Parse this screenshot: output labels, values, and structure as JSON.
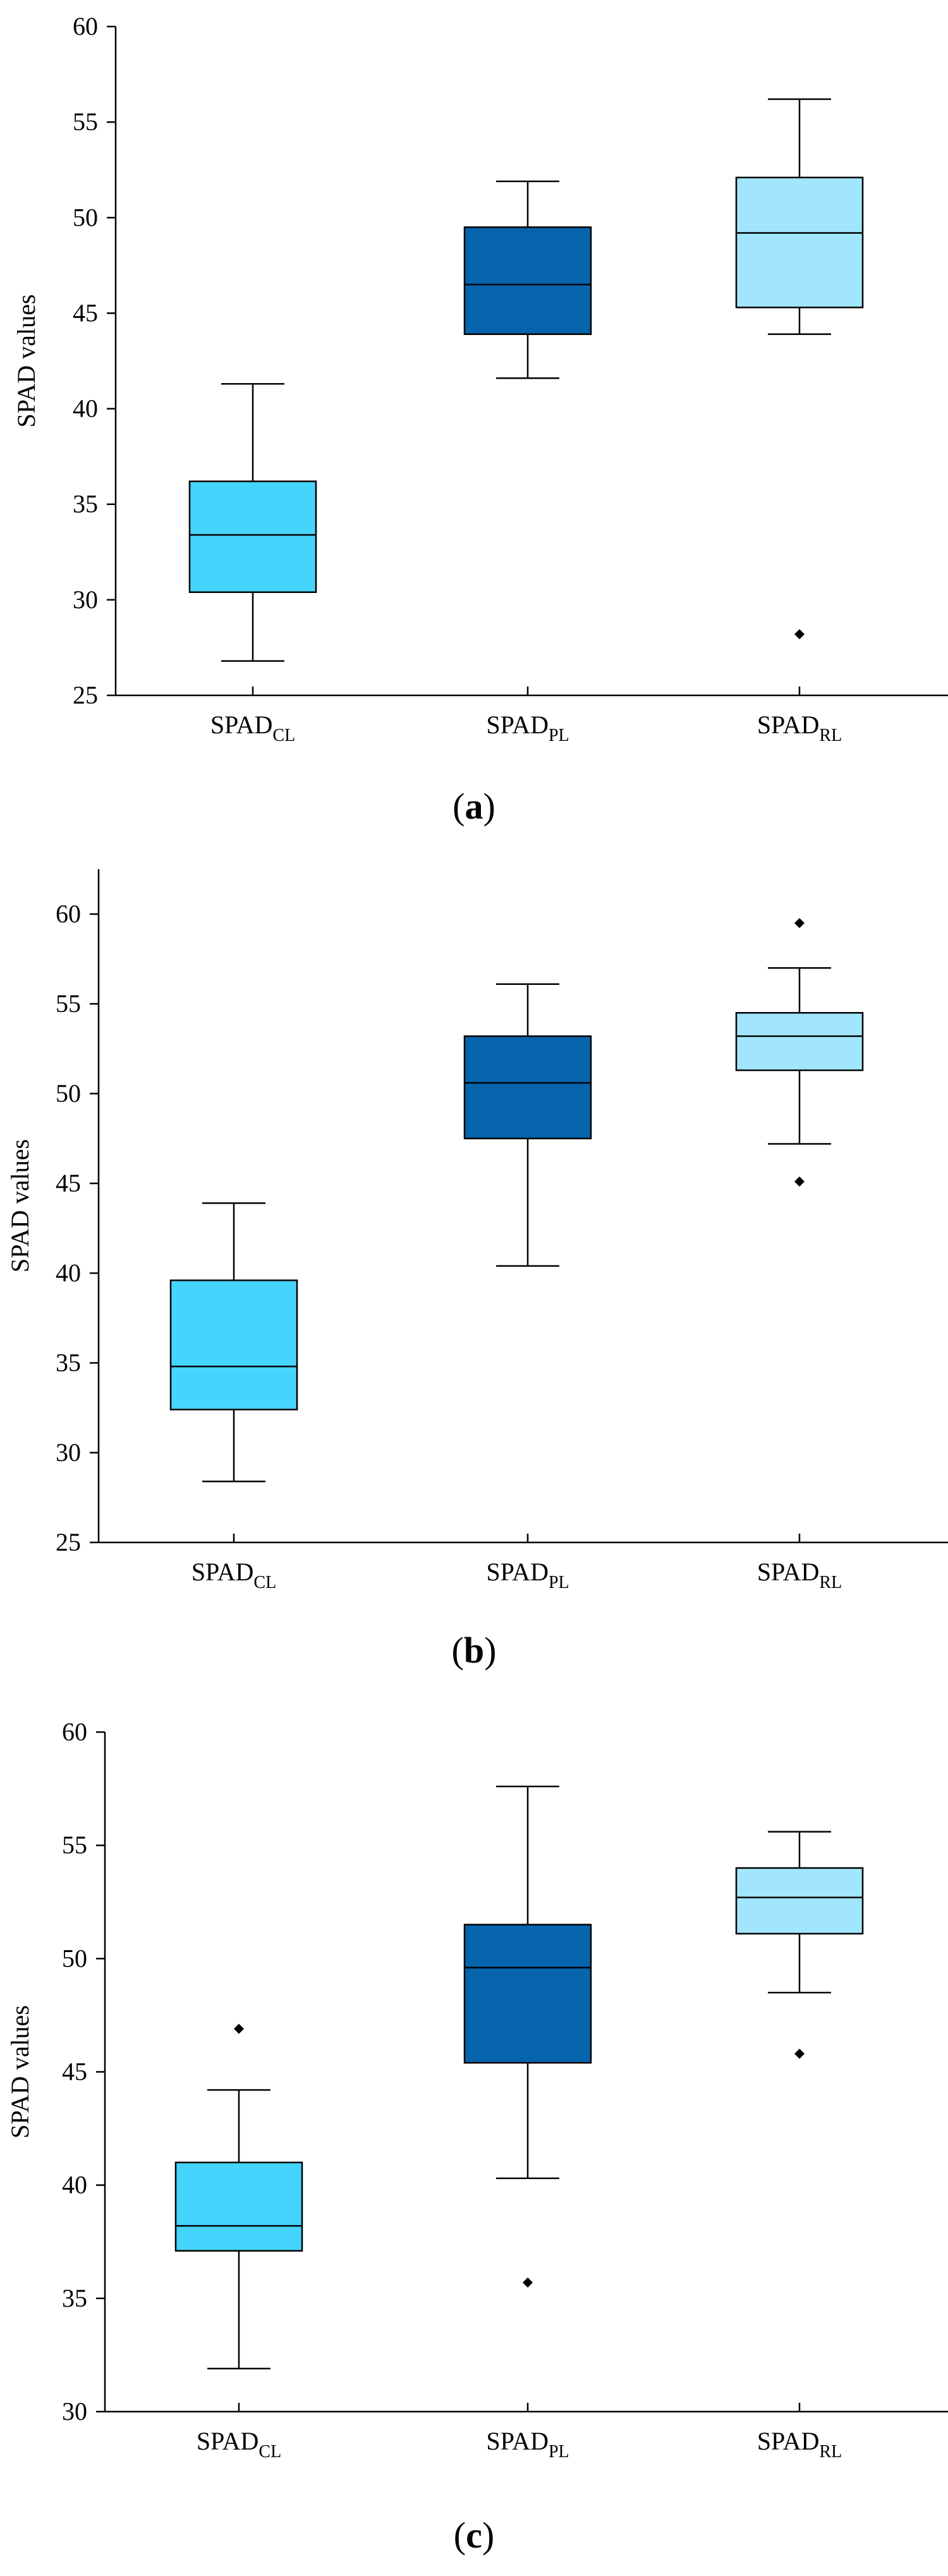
{
  "chart_data": [
    {
      "type": "boxplot",
      "panel": "a",
      "caption": "(a)",
      "ylabel": "SPAD values",
      "ylim": [
        25,
        60
      ],
      "yticks": [
        25,
        30,
        35,
        40,
        45,
        50,
        55,
        60
      ],
      "categories": [
        {
          "base": "SPAD",
          "sub": "CL",
          "color": "#45d4fc",
          "stats": {
            "min": 26.8,
            "q1": 30.4,
            "median": 33.4,
            "q3": 36.2,
            "max": 41.3
          },
          "outliers": []
        },
        {
          "base": "SPAD",
          "sub": "PL",
          "color": "#0664ad",
          "stats": {
            "min": 41.6,
            "q1": 43.9,
            "median": 46.5,
            "q3": 49.5,
            "max": 51.9
          },
          "outliers": []
        },
        {
          "base": "SPAD",
          "sub": "RL",
          "color": "#a1e6fc",
          "stats": {
            "min": 43.9,
            "q1": 45.3,
            "median": 49.2,
            "q3": 52.1,
            "max": 56.2
          },
          "outliers": [
            28.2
          ]
        }
      ]
    },
    {
      "type": "boxplot",
      "panel": "b",
      "caption": "(b)",
      "ylabel": "SPAD values",
      "ylim": [
        25,
        62.5
      ],
      "yticks": [
        25,
        30,
        35,
        40,
        45,
        50,
        55,
        60
      ],
      "categories": [
        {
          "base": "SPAD",
          "sub": "CL",
          "color": "#45d4fc",
          "stats": {
            "min": 28.4,
            "q1": 32.4,
            "median": 34.8,
            "q3": 39.6,
            "max": 43.9
          },
          "outliers": []
        },
        {
          "base": "SPAD",
          "sub": "PL",
          "color": "#0664ad",
          "stats": {
            "min": 40.4,
            "q1": 47.5,
            "median": 50.6,
            "q3": 53.2,
            "max": 56.1
          },
          "outliers": []
        },
        {
          "base": "SPAD",
          "sub": "RL",
          "color": "#a1e6fc",
          "stats": {
            "min": 47.2,
            "q1": 51.3,
            "median": 53.2,
            "q3": 54.5,
            "max": 57.0
          },
          "outliers": [
            59.5,
            45.1
          ]
        }
      ]
    },
    {
      "type": "boxplot",
      "panel": "c",
      "caption": "(c)",
      "ylabel": "SPAD values",
      "ylim": [
        30,
        60
      ],
      "yticks": [
        30,
        35,
        40,
        45,
        50,
        55,
        60
      ],
      "categories": [
        {
          "base": "SPAD",
          "sub": "CL",
          "color": "#45d4fc",
          "stats": {
            "min": 31.9,
            "q1": 37.1,
            "median": 38.2,
            "q3": 41.0,
            "max": 44.2
          },
          "outliers": [
            46.9
          ]
        },
        {
          "base": "SPAD",
          "sub": "PL",
          "color": "#0664ad",
          "stats": {
            "min": 40.3,
            "q1": 45.4,
            "median": 49.6,
            "q3": 51.5,
            "max": 57.6
          },
          "outliers": [
            35.7
          ]
        },
        {
          "base": "SPAD",
          "sub": "RL",
          "color": "#a1e6fc",
          "stats": {
            "min": 48.5,
            "q1": 51.1,
            "median": 52.7,
            "q3": 54.0,
            "max": 55.6
          },
          "outliers": [
            45.8
          ]
        }
      ]
    }
  ]
}
